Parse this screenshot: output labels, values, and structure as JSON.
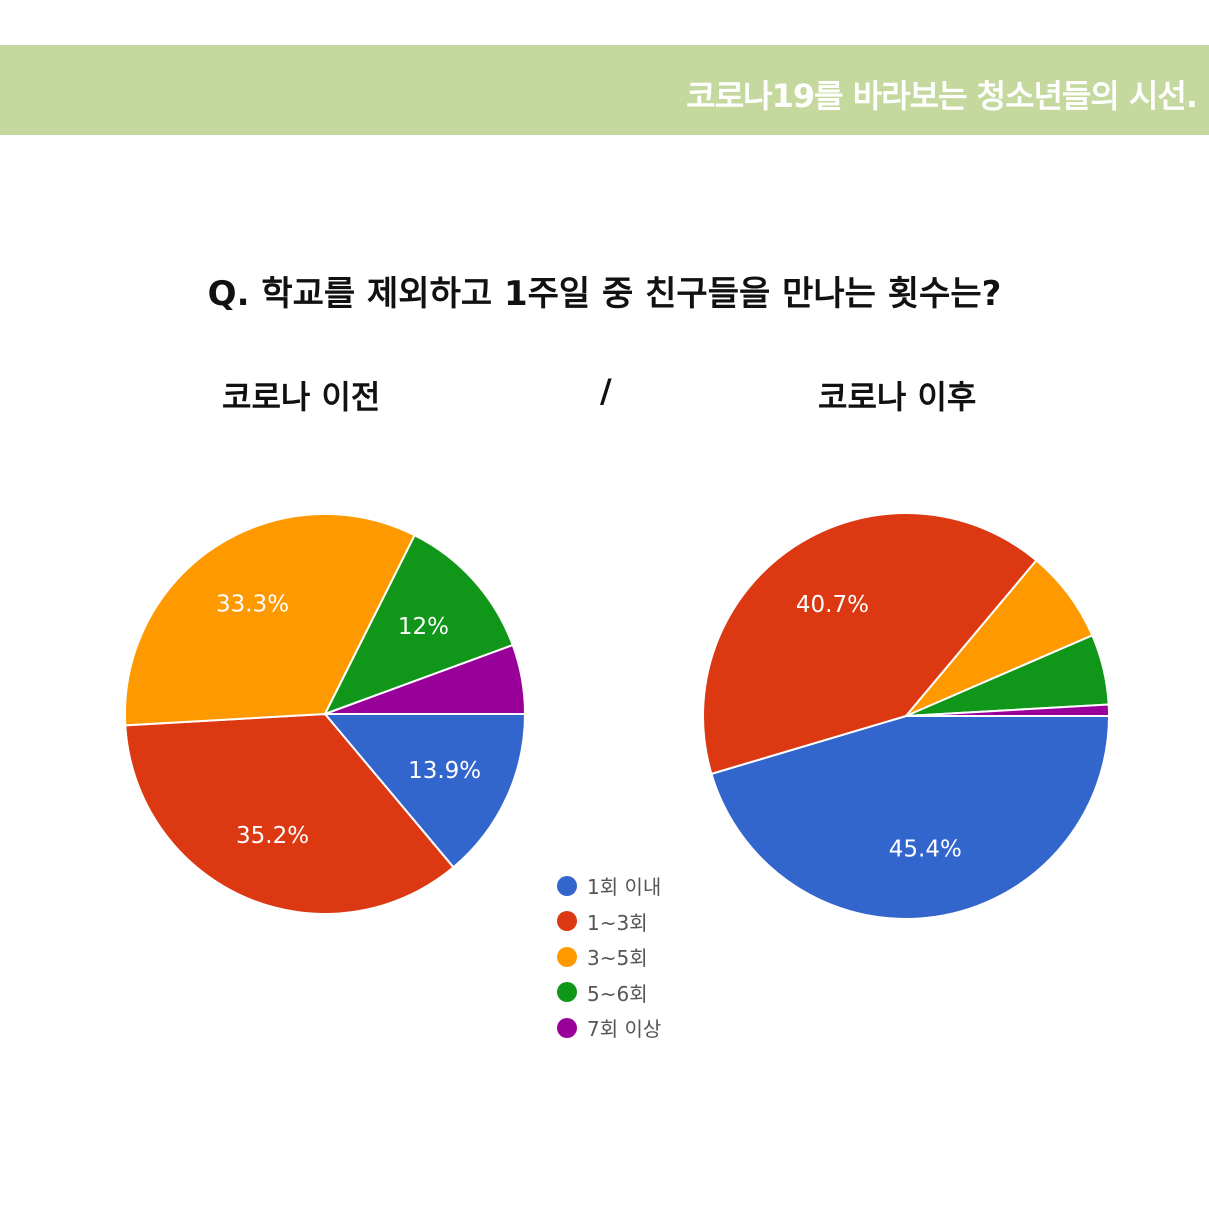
{
  "banner": {
    "title": "코로나19를 바라보는 청소년들의 시선."
  },
  "question": "Q. 학교를 제외하고 1주일 중 친구들을 만나는 횟수는?",
  "subtitles": {
    "left": "코로나 이전",
    "divider": "/",
    "right": "코로나 이후"
  },
  "colors": {
    "banner": "#c5d89e",
    "1회 이내": "#3366cc",
    "1~3회": "#dc3912",
    "3~5회": "#ff9900",
    "5~6회": "#109618",
    "7회 이상": "#990099"
  },
  "chart_data": [
    {
      "type": "pie",
      "title": "코로나 이전",
      "categories": [
        "1회 이내",
        "1~3회",
        "3~5회",
        "5~6회",
        "7회 이상"
      ],
      "values": [
        13.9,
        35.2,
        33.3,
        12,
        5.6
      ],
      "data_labels": [
        "13.9%",
        "35.2%",
        "33.3%",
        "12%",
        ""
      ]
    },
    {
      "type": "pie",
      "title": "코로나 이후",
      "categories": [
        "1회 이내",
        "1~3회",
        "3~5회",
        "5~6회",
        "7회 이상"
      ],
      "values": [
        45.4,
        40.7,
        7.4,
        5.6,
        0.9
      ],
      "data_labels": [
        "45.4%",
        "40.7%",
        "",
        "",
        ""
      ]
    }
  ],
  "legend": {
    "position": "bottom-center",
    "items": [
      {
        "label": "1회 이내",
        "color": "#3366cc"
      },
      {
        "label": "1~3회",
        "color": "#dc3912"
      },
      {
        "label": "3~5회",
        "color": "#ff9900"
      },
      {
        "label": "5~6회",
        "color": "#109618"
      },
      {
        "label": "7회 이상",
        "color": "#990099"
      }
    ]
  }
}
